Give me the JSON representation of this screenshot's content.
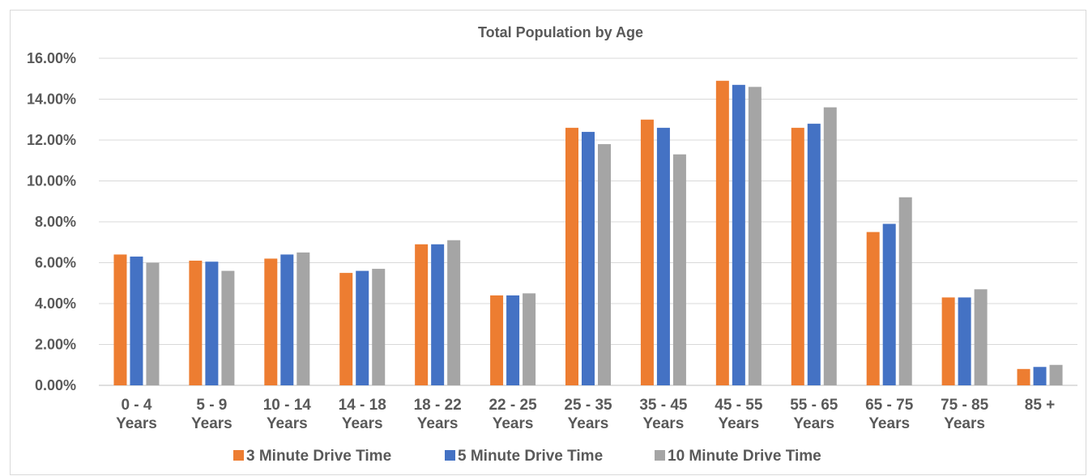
{
  "chart_data": {
    "type": "bar",
    "title": "Total Population by Age",
    "xlabel": "",
    "ylabel": "",
    "ylim": [
      0,
      16
    ],
    "yticks": [
      "0.00%",
      "2.00%",
      "4.00%",
      "6.00%",
      "8.00%",
      "10.00%",
      "12.00%",
      "14.00%",
      "16.00%"
    ],
    "categories": [
      [
        "0 - 4",
        "Years"
      ],
      [
        "5 - 9",
        "Years"
      ],
      [
        "10 - 14",
        "Years"
      ],
      [
        "14 - 18",
        "Years"
      ],
      [
        "18 - 22",
        "Years"
      ],
      [
        "22 - 25",
        "Years"
      ],
      [
        "25 - 35",
        "Years"
      ],
      [
        "35 - 45",
        "Years"
      ],
      [
        "45 - 55",
        "Years"
      ],
      [
        "55 - 65",
        "Years"
      ],
      [
        "65 - 75",
        "Years"
      ],
      [
        "75 - 85",
        "Years"
      ],
      [
        "85 +"
      ]
    ],
    "series": [
      {
        "name": "3 Minute Drive Time",
        "color": "#ed7d31",
        "values": [
          6.4,
          6.1,
          6.2,
          5.5,
          6.9,
          4.4,
          12.6,
          13.0,
          14.9,
          12.6,
          7.5,
          4.3,
          0.8
        ]
      },
      {
        "name": "5 Minute Drive Time",
        "color": "#4472c4",
        "values": [
          6.3,
          6.05,
          6.4,
          5.6,
          6.9,
          4.4,
          12.4,
          12.6,
          14.7,
          12.8,
          7.9,
          4.3,
          0.9
        ]
      },
      {
        "name": "10 Minute Drive Time",
        "color": "#a5a5a5",
        "values": [
          6.0,
          5.6,
          6.5,
          5.7,
          7.1,
          4.5,
          11.8,
          11.3,
          14.6,
          13.6,
          9.2,
          4.7,
          1.0
        ]
      }
    ],
    "grid": true,
    "legend_position": "bottom"
  }
}
